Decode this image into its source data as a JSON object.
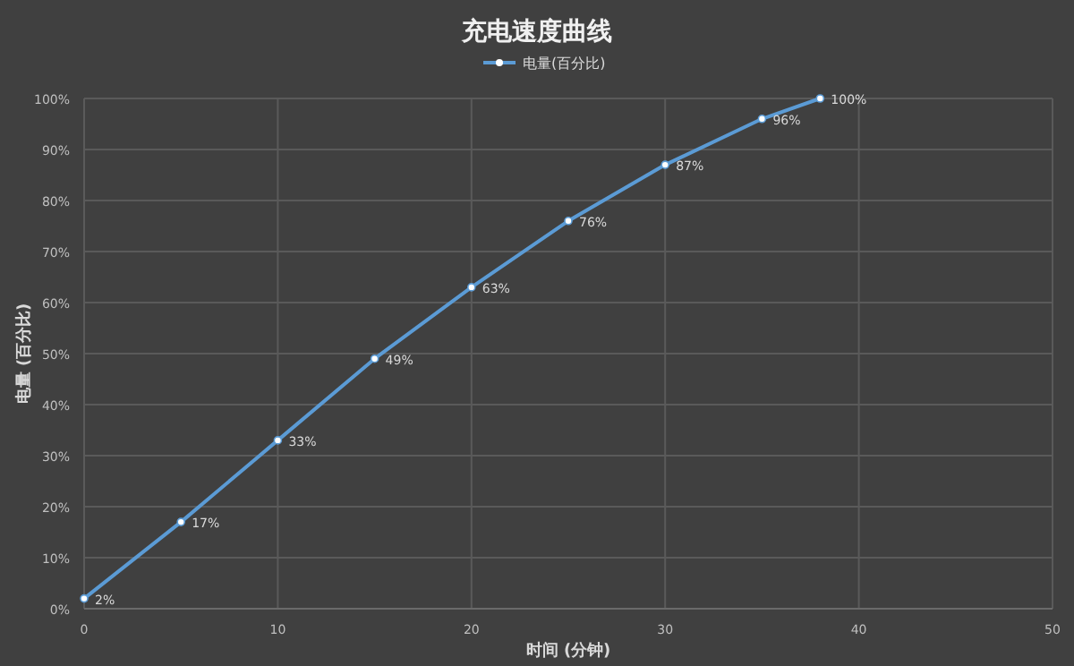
{
  "chart_data": {
    "type": "line",
    "title": "充电速度曲线",
    "xlabel": "时间 (分钟)",
    "ylabel": "电量 (百分比)",
    "x": [
      0,
      5,
      10,
      15,
      20,
      25,
      30,
      35,
      38
    ],
    "series": [
      {
        "name": "电量(百分比)",
        "color": "#5b9bd5",
        "values": [
          2,
          17,
          33,
          49,
          63,
          76,
          87,
          96,
          100
        ],
        "value_labels": [
          "2%",
          "17%",
          "33%",
          "49%",
          "63%",
          "76%",
          "87%",
          "96%",
          "100%"
        ]
      }
    ],
    "xlim": [
      0,
      50
    ],
    "xticks": [
      0,
      10,
      20,
      30,
      40,
      50
    ],
    "ylim": [
      0,
      100
    ],
    "yticks": [
      {
        "value": 0,
        "label": "0%"
      },
      {
        "value": 10,
        "label": "10%"
      },
      {
        "value": 20,
        "label": "20%"
      },
      {
        "value": 30,
        "label": "30%"
      },
      {
        "value": 40,
        "label": "40%"
      },
      {
        "value": 50,
        "label": "50%"
      },
      {
        "value": 60,
        "label": "60%"
      },
      {
        "value": 70,
        "label": "70%"
      },
      {
        "value": 80,
        "label": "80%"
      },
      {
        "value": 90,
        "label": "90%"
      },
      {
        "value": 100,
        "label": "100%"
      }
    ],
    "grid": true,
    "legend": "top",
    "marker": "circle",
    "line_style": "solid"
  }
}
